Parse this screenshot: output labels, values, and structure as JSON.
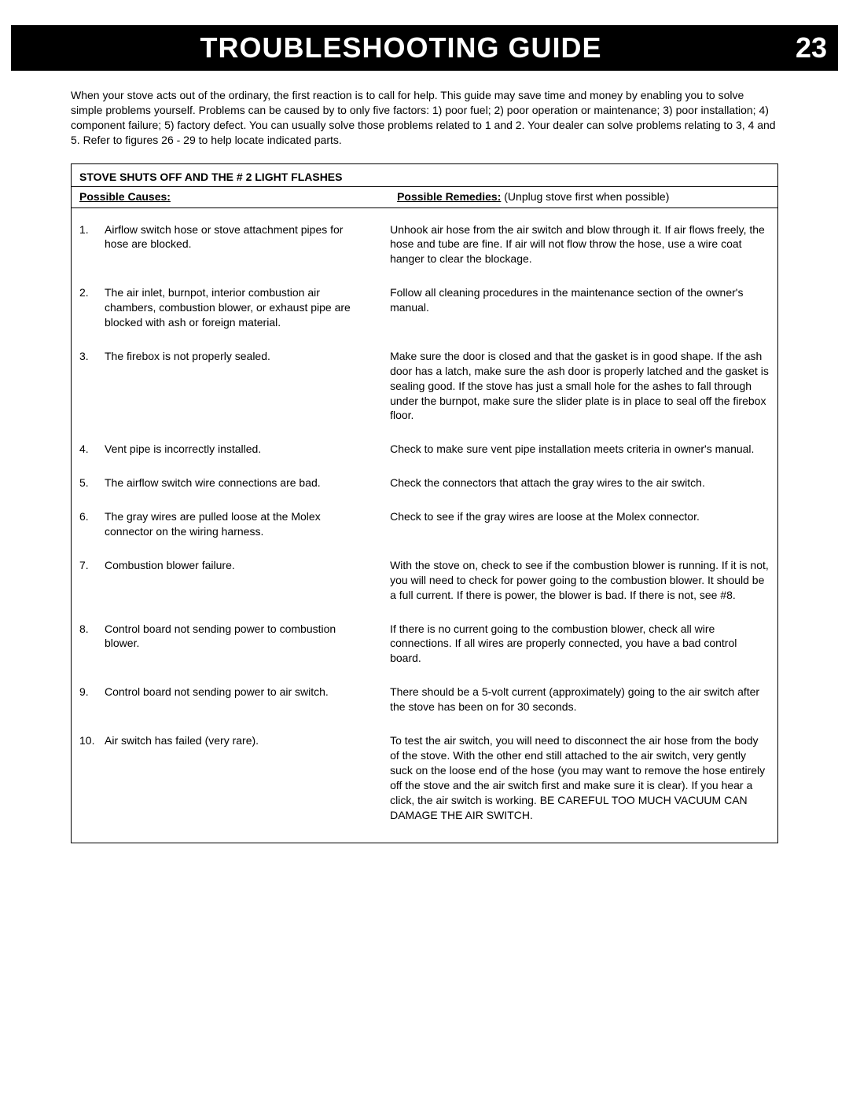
{
  "header": {
    "title": "TROUBLESHOOTING GUIDE",
    "page_number": "23"
  },
  "intro": "When your stove acts out of the ordinary, the first reaction is to call for help. This guide may save time and money by enabling you to solve simple problems yourself. Problems can be caused by to only five factors: 1) poor fuel; 2) poor operation or maintenance; 3) poor installation; 4) component failure; 5) factory defect. You can usually solve those problems related to 1 and 2. Your dealer can solve problems relating to 3, 4 and 5. Refer to figures 26 - 29 to help locate indicated parts.",
  "section": {
    "title": "STOVE SHUTS OFF AND THE # 2 LIGHT FLASHES",
    "causes_label": "Possible Causes:",
    "remedies_label": "Possible Remedies:",
    "remedies_note": " (Unplug stove first when possible)",
    "items": [
      {
        "num": "1.",
        "cause": "Airflow switch hose or stove attachment pipes for hose are blocked.",
        "remedy": "Unhook air hose from the air switch and blow through it.  If air flows freely, the hose and tube are fine.  If air will not flow throw the hose, use a wire coat hanger to clear the blockage."
      },
      {
        "num": "2.",
        "cause": "The air inlet, burnpot, interior combustion air chambers, combustion blower, or exhaust pipe are blocked with ash or foreign material.",
        "remedy": "Follow all cleaning procedures in the maintenance section of the owner's manual."
      },
      {
        "num": "3.",
        "cause": "The firebox is not properly sealed.",
        "remedy": "Make sure the door is closed and that the gasket is in good shape.  If the ash door has a latch, make sure the ash door is properly latched and the gasket is sealing good.  If the stove has just a small hole for the ashes to fall through under the burnpot, make sure the slider plate is in place to seal off the firebox floor."
      },
      {
        "num": "4.",
        "cause": "Vent pipe is incorrectly installed.",
        "remedy": "Check to make sure vent pipe installation meets criteria in owner's manual."
      },
      {
        "num": "5.",
        "cause": "The airflow switch wire connections are bad.",
        "remedy": "Check the connectors that attach the gray wires to the air switch."
      },
      {
        "num": "6.",
        "cause": "The gray wires are pulled loose at the Molex connector on the wiring harness.",
        "remedy": "Check to see if the gray wires are loose at the Molex connector."
      },
      {
        "num": "7.",
        "cause": "Combustion blower failure.",
        "remedy": "With the stove on, check to see if the combustion blower is running.  If it is not, you will need to check for power going to the combustion blower.  It should be a full current.  If there is power, the blower is bad.  If there is not, see #8."
      },
      {
        "num": "8.",
        "cause": "Control board not sending power to combustion blower.",
        "remedy": "If there is no current going to the combustion blower, check all wire connections.  If all wires are properly connected, you have a bad control board."
      },
      {
        "num": "9.",
        "cause": "Control board not sending power to air switch.",
        "remedy": "There should be a 5-volt current (approximately) going to the air switch after the stove has been on for 30 seconds."
      },
      {
        "num": "10.",
        "cause": "Air switch has failed (very rare).",
        "remedy": "To test the air switch, you will need to disconnect the air hose from the body of the stove.  With the other end still attached to the air switch, very gently suck on the loose end of the hose (you may want to remove the hose entirely off the stove and the air switch first and make sure it is clear).  If you hear a click, the air switch is working.  BE CAREFUL TOO MUCH VACUUM CAN DAMAGE THE AIR SWITCH."
      }
    ]
  }
}
